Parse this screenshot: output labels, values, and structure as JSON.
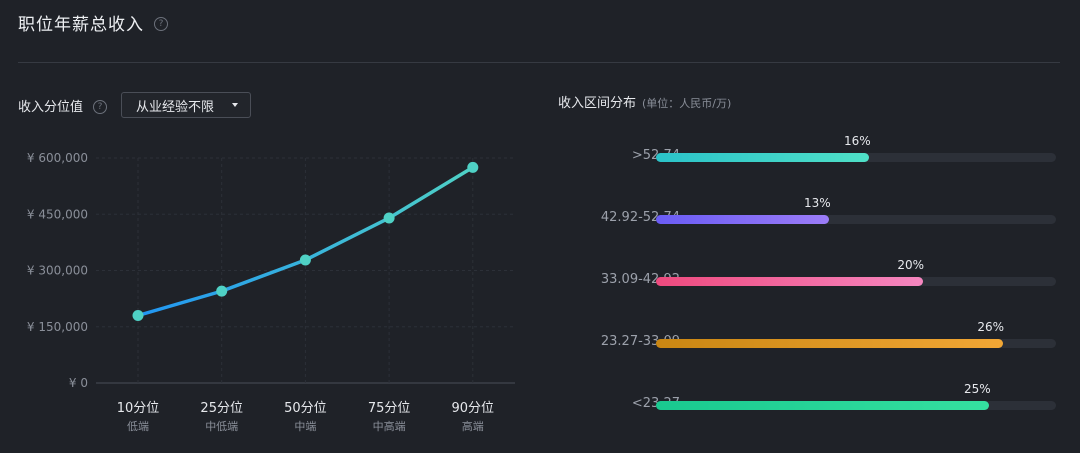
{
  "header": {
    "title": "职位年薪总收入",
    "help_icon": "?"
  },
  "left_panel": {
    "label": "收入分位值",
    "help_icon": "?",
    "dropdown": {
      "selected": "从业经验不限"
    }
  },
  "right_panel": {
    "title": "收入区间分布",
    "unit": "(单位：人民币/万)"
  },
  "colors": {
    "background": "#1f2228",
    "line_start": "#2196f3",
    "line_end": "#4fd1c5",
    "marker": "#4fd1c5"
  },
  "chart_data": [
    {
      "type": "line",
      "title": "",
      "categories": [
        "10分位",
        "25分位",
        "50分位",
        "75分位",
        "90分位"
      ],
      "category_sublabels": [
        "低端",
        "中低端",
        "中端",
        "中高端",
        "高端"
      ],
      "series": [
        {
          "values": [
            180000,
            245000,
            328000,
            440000,
            575000
          ]
        }
      ],
      "ylim": [
        0,
        600000
      ],
      "yticks": [
        0,
        150000,
        300000,
        450000,
        600000
      ],
      "ytick_labels": [
        "¥ 0",
        "¥ 150,000",
        "¥ 300,000",
        "¥ 450,000",
        "¥ 600,000"
      ],
      "grid": true
    },
    {
      "type": "bar",
      "orientation": "horizontal",
      "title": "收入区间分布",
      "categories": [
        ">52.74",
        "42.92-52.74",
        "33.09-42.92",
        "23.27-33.09",
        "<23.27"
      ],
      "values": [
        16,
        13,
        20,
        26,
        25
      ],
      "value_labels": [
        "16%",
        "13%",
        "20%",
        "26%",
        "25%"
      ],
      "bar_colors": [
        [
          "#2bc3c9",
          "#4fe0c7"
        ],
        [
          "#6a5cf5",
          "#9b7cf7"
        ],
        [
          "#ee4a7e",
          "#f587c0"
        ],
        [
          "#c98612",
          "#f2a735"
        ],
        [
          "#19c98f",
          "#35e0a0"
        ]
      ],
      "xlim": [
        0,
        30
      ]
    }
  ]
}
